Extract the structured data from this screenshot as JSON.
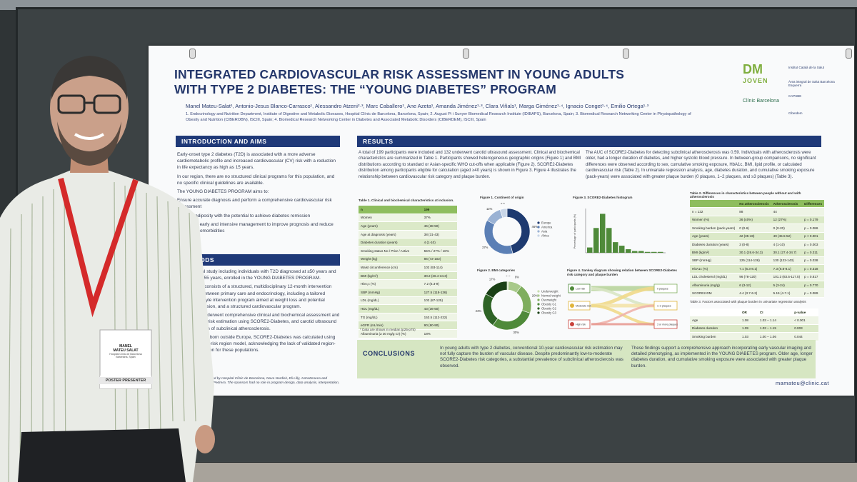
{
  "poster": {
    "title_line1": "INTEGRATED CARDIOVASCULAR RISK ASSESSMENT IN YOUNG ADULTS",
    "title_line2": "WITH TYPE 2 DIABETES: THE “YOUNG DIABETES” PROGRAM",
    "authors": "Manel Mateu-Salat¹, Antonio-Jesus Blanco-Carrasco¹, Alessandro Atzeni²·³, Marc Caballero¹, Ane Azeta¹, Amanda Jiménez¹·³, Clara Viñals¹, Marga Giménez¹·⁴, Ignacio Conget¹·⁴, Emilio Ortega¹·³",
    "affiliations": "1. Endocrinology and Nutrition Department, Institute of Digestive and Metabolic Diseases, Hospital Clínic de Barcelona, Barcelona, Spain; 2. August Pi i Sunyer Biomedical Research Institute (IDIBAPS), Barcelona, Spain; 3. Biomedical Research Networking Center in Physiopathology of Obesity and Nutrition (CIBEROBN), ISCIII, Spain; 4. Biomedical Research Networking Center in Diabetes and Associated Metabolic Disorders (CIBERDEM), ISCIII, Spain",
    "logos": {
      "dm": "DM",
      "joven": "JOVEN",
      "clinic": "Clínic Barcelona",
      "inst1": "Institut Català de la Salut",
      "inst2": "Àrea integral de Salut Barcelona Esquerra",
      "inst3": "CAPSBE",
      "inst4": "Ciberdem"
    },
    "intro": {
      "header": "INTRODUCTION AND AIMS",
      "p1": "Early-onset type 2 diabetes (T2D) is associated with a more adverse cardiometabolic profile and increased cardiovascular (CV) risk with a reduction in life expectancy as high as 15 years.",
      "p2": "In our region, there are no structured clinical programs for this population, and no specific clinical guidelines are available.",
      "p3": "The YOUNG DIABETES PROGRAM aims to:",
      "p4": "Ensure accurate diagnosis and perform a comprehensive cardiovascular risk assessment",
      "p5": "Address adiposity with the potential to achieve diabetes remission",
      "p6": "Implement early and intensive management to improve prognosis and reduce long-term comorbidities"
    },
    "methods": {
      "header": "METHODS",
      "p1": "Observational study including individuals with T2D diagnosed at ≤50 years and current age ≤55 years, enrolled in the YOUNG DIABETES PROGRAM.",
      "p2": "The program consists of a structured, multidisciplinary 12-month intervention coordinated between primary care and endocrinology, including a tailored intensive lifestyle intervention program aimed at weight loss and potential diabetes remission, and a structured cardiovascular program.",
      "p3": "Participants underwent comprehensive clinical and biochemical assessment and cardiovascular risk estimation using SCORE2-Diabetes, and carotid ultrasound for the detection of subclinical atherosclerosis.",
      "p4": "For participants born outside Europe, SCORE2-Diabetes was calculated using the Spanish low-risk region model, acknowledging the lack of validated region-specific calibration for these populations.",
      "funding": "This study was supported by Hospital Clínic de Barcelona, Novo Nordisk, Eli Lilly, AstraZeneca and Fundació Catalunya La Pedrera. The sponsors had no role in program design, data analysis, interpretation, or poster preparation."
    },
    "results": {
      "header": "RESULTS",
      "p1": "A total of 199 participants were included and 132 underwent carotid ultrasound assessment. Clinical and biochemical characteristics are summarized in Table 1. Participants showed heterogeneous geographic origins (Figure 1) and BMI distributions according to standard or Asian-specific WHO cut-offs when applicable (Figure 2). SCORE2-Diabetes distribution among participants eligible for calculation (aged ≥40 years) is shown in Figure 3. Figure 4 illustrates the relationship between cardiovascular risk category and plaque burden.",
      "p2": "The AUC of SCORE2-Diabetes for detecting subclinical atherosclerosis was 0.59. Individuals with atherosclerosis were older, had a longer duration of diabetes, and higher systolic blood pressure. In between-group comparisons, no significant differences were observed according to sex, cumulative smoking exposure, HbA1c, BMI, lipid profile, or calculated cardiovascular risk (Table 2). In univariate regression analysis, age, diabetes duration, and cumulative smoking exposure (pack-years) were associated with greater plaque burden (0 plaques, 1–2 plaques, and ≥3 plaques) (Table 3)."
    },
    "table1": {
      "title": "Table 1. Clinical and biochemical characteristics at inclusion.",
      "header": [
        "n",
        "199"
      ],
      "rows": [
        [
          "Women",
          "37%"
        ],
        [
          "Age (years)",
          "46 (38-50)"
        ],
        [
          "Age at diagnosis (years)",
          "38 (31-43)"
        ],
        [
          "Diabetes duration (years)",
          "4 (1-10)"
        ],
        [
          "Smoking status  No / Prior / Active",
          "55% / 27% / 18%"
        ],
        [
          "Weight (kg)",
          "86 (72-102)"
        ],
        [
          "Waist circumference (cm)",
          "102 (93-114)"
        ],
        [
          "BMI (kg/m²)",
          "30.2 (26.4-34.3)"
        ],
        [
          "HbA₁c (%)",
          "7.2 (6.3-9)"
        ],
        [
          "SBP (mmHg)",
          "127.5 (118-136)"
        ],
        [
          "LDL (mg/dL)",
          "102 (87-125)"
        ],
        [
          "HDL (mg/dL)",
          "43 (36-50)"
        ],
        [
          "TG (mg/dL)",
          "153.5 (112-232)"
        ],
        [
          "eGFR (mL/min)",
          "90 (90-90)"
        ],
        [
          "Albuminuria (≥ 30 mg/g Cr) (%)",
          "18%"
        ]
      ],
      "note": "* Data are shown in median (p25-p75)"
    },
    "figure1": {
      "title": "Figure 1. Continent of origin",
      "legend": [
        "Europe",
        "America",
        "Asia",
        "Africa"
      ],
      "values": [
        46,
        37,
        12,
        5
      ],
      "labels": [
        "46%",
        "37%",
        "12%",
        "5%"
      ],
      "colors": [
        "#1e3a70",
        "#5b7fb5",
        "#9ab2d4",
        "#c9d6e8"
      ]
    },
    "figure2": {
      "title": "Figure 2. BMI categories",
      "legend": [
        "Underweight",
        "Normal weight",
        "Overweight",
        "Obesity G1",
        "Obesity G2",
        "Obesity G3"
      ],
      "values": [
        1,
        9,
        20,
        30,
        23,
        17
      ],
      "labels": [
        "1%",
        "9%",
        "20%",
        "30%",
        "23%",
        "17%"
      ],
      "colors": [
        "#c7dbb0",
        "#a8c98a",
        "#7fae5e",
        "#4f8a3a",
        "#2e6326",
        "#1a4016"
      ]
    },
    "figure3": {
      "title": "Figure 3. SCORE2-Diabetes histogram",
      "ylabel": "Percentage of participants (%)",
      "values": [
        3,
        14,
        22,
        14,
        6,
        4,
        2,
        1,
        1,
        0.5,
        0.5,
        0.5
      ]
    },
    "figure4": {
      "title": "Figure 4. Sankey diagram showing relation between SCORE2-Diabetes risk category and plaque burden",
      "left": [
        "Low risk",
        "Moderate risk",
        "High risk"
      ],
      "right": [
        "0 plaques",
        "1–2 plaques",
        "3 or more plaques"
      ]
    },
    "table2": {
      "title": "Table 2. Differences in characteristics between people without and with atherosclerosis",
      "header": [
        "",
        "No atherosclerosis",
        "Atherosclerosis",
        "Differences"
      ],
      "rows": [
        [
          "n = 132",
          "88",
          "44",
          ""
        ],
        [
          "Women (%)",
          "36 (40%)",
          "12 (27%)",
          "p = 0.179"
        ],
        [
          "Smoking burden (pack-years)",
          "0 (0-6)",
          "0 (0-20)",
          "p = 0.086"
        ],
        [
          "Age (years)",
          "42 (35-48)",
          "49 (45.5-52)",
          "p < 0.001"
        ],
        [
          "Diabetes duration (years)",
          "3 (0-8)",
          "4 (1-10)",
          "p = 0.003"
        ],
        [
          "BMI (kg/m²)",
          "30.1 (26.6-34.3)",
          "30.1 (27.4-34.7)",
          "p = 0.311"
        ],
        [
          "SBP (mmHg)",
          "125 (114-136)",
          "130 (122-143)",
          "p = 0.038"
        ],
        [
          "HbA1c (%)",
          "7.1 (6.3-8.1)",
          "7.3 (6.8-8.1)",
          "p = 0.318"
        ],
        [
          "LDL cholesterol (mg/dL)",
          "96 (78-120)",
          "101.3 (83.5-117.5)",
          "p = 0.817"
        ],
        [
          "Albuminuria (mg/g)",
          "6 (3-12)",
          "5 (3-24)",
          "p = 0.770"
        ],
        [
          "SCORE2-DM",
          "4.4 (3.7-6.2)",
          "5.15 (4-7.1)",
          "p = 0.089"
        ]
      ]
    },
    "table3": {
      "title": "Table 3. Factors associated with plaque burden in univariate regression analysis",
      "header": [
        "",
        "OR",
        "CI",
        "p-value"
      ],
      "rows": [
        [
          "Age",
          "1.08",
          "1.03 – 1.14",
          "< 0.001"
        ],
        [
          "Diabetes duration",
          "1.09",
          "1.03 – 1.15",
          "0.003"
        ],
        [
          "Smoking burden",
          "1.03",
          "1.00 – 1.06",
          "0.044"
        ]
      ]
    },
    "conclusions": {
      "header": "CONCLUSIONS",
      "p1": "In young adults with type 2 diabetes, conventional 10-year cardiovascular risk estimation may not fully capture the burden of vascular disease. Despite predominantly low-to-moderate SCORE2-Diabetes risk categories, a substantial prevalence of subclinical atherosclerosis was observed.",
      "p2": "These findings support a comprehensive approach incorporating early vascular imaging and detailed phenotyping, as implemented in the YOUNG DIABETES program. Older age, longer diabetes duration, and cumulative smoking exposure were associated with greater plaque burden."
    },
    "email": "mamateu@clinic.cat"
  },
  "badge": {
    "name_line1": "MANEL",
    "name_line2": "MATEU SALAT",
    "org": "Hospital Clínic de Barcelona",
    "location": "Barcelona, Spain",
    "role": "POSTER PRESENTER",
    "lanyard_color": "#d42a2a"
  }
}
